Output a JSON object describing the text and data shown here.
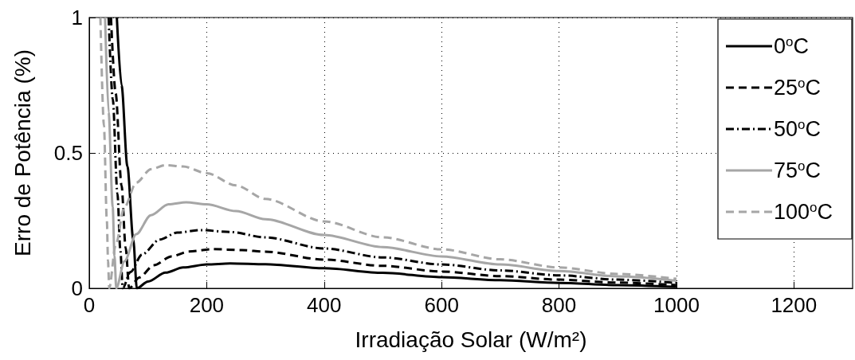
{
  "chart_data": {
    "type": "line",
    "xlabel": "Irradiação Solar (W/m²)",
    "ylabel": "Erro de Potência (%)",
    "xlim": [
      0,
      1300
    ],
    "xticks": [
      0,
      200,
      400,
      600,
      800,
      1000,
      1200
    ],
    "ylim": [
      0,
      1
    ],
    "yticks": [
      0,
      0.5,
      1
    ],
    "grid": true,
    "legend": "top right",
    "marker": "none",
    "series": [
      {
        "name": "0$^{o}$C",
        "color": "#000000",
        "line_style": "solid",
        "x": [
          47,
          55,
          65,
          75,
          81,
          100,
          130,
          160,
          200,
          240,
          300,
          400,
          500,
          600,
          700,
          800,
          900,
          1000
        ],
        "values": [
          1,
          0.75,
          0.45,
          0.18,
          0,
          0.025,
          0.058,
          0.077,
          0.088,
          0.092,
          0.089,
          0.074,
          0.057,
          0.041,
          0.03,
          0.02,
          0.012,
          0.005
        ]
      },
      {
        "name": "25$^{o}$C",
        "color": "#000000",
        "line_style": "dashed",
        "x": [
          37,
          45,
          55,
          62,
          68,
          85,
          110,
          140,
          170,
          210,
          260,
          300,
          400,
          500,
          600,
          700,
          800,
          900,
          1000
        ],
        "values": [
          1,
          0.72,
          0.38,
          0.15,
          0,
          0.04,
          0.085,
          0.118,
          0.136,
          0.145,
          0.141,
          0.135,
          0.106,
          0.083,
          0.062,
          0.045,
          0.032,
          0.021,
          0.012
        ]
      },
      {
        "name": "50$^{o}$C",
        "color": "#000000",
        "line_style": "dashdot",
        "x": [
          33,
          40,
          48,
          53,
          57,
          70,
          90,
          120,
          150,
          190,
          240,
          300,
          400,
          500,
          600,
          700,
          800,
          900,
          1000
        ],
        "values": [
          1,
          0.7,
          0.35,
          0.14,
          0,
          0.06,
          0.125,
          0.18,
          0.206,
          0.215,
          0.208,
          0.188,
          0.147,
          0.114,
          0.088,
          0.066,
          0.048,
          0.032,
          0.02
        ]
      },
      {
        "name": "75$^{o}$C",
        "color": "#a6a6a6",
        "line_style": "solid",
        "x": [
          27,
          33,
          40,
          43,
          46,
          60,
          80,
          105,
          135,
          165,
          200,
          250,
          300,
          400,
          500,
          600,
          700,
          800,
          900,
          1000
        ],
        "values": [
          1,
          0.65,
          0.3,
          0.12,
          0,
          0.1,
          0.2,
          0.27,
          0.31,
          0.318,
          0.31,
          0.285,
          0.255,
          0.197,
          0.152,
          0.118,
          0.088,
          0.064,
          0.044,
          0.028
        ]
      },
      {
        "name": "100$^{o}$C",
        "color": "#a6a6a6",
        "line_style": "dashed",
        "x": [
          19,
          25,
          30,
          32,
          34,
          45,
          60,
          80,
          105,
          130,
          160,
          200,
          250,
          300,
          400,
          500,
          600,
          700,
          800,
          900,
          1000
        ],
        "values": [
          1,
          0.6,
          0.25,
          0.1,
          0,
          0.16,
          0.3,
          0.39,
          0.44,
          0.455,
          0.45,
          0.425,
          0.38,
          0.33,
          0.247,
          0.188,
          0.144,
          0.107,
          0.077,
          0.053,
          0.035
        ]
      }
    ]
  }
}
